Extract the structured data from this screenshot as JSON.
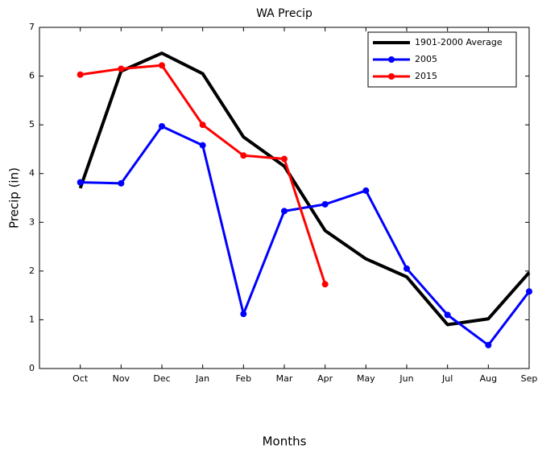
{
  "chart_data": {
    "type": "line",
    "title": "WA Precip",
    "x_label": "Months",
    "y_label": "Precip (in)",
    "categories": [
      null,
      "Oct",
      "Nov",
      "Dec",
      "Jan",
      "Feb",
      "Mar",
      "Apr",
      "May",
      "Jun",
      "Jul",
      "Aug",
      "Sep"
    ],
    "series": [
      {
        "name": "1901-2000 Average",
        "color": "#000000",
        "markers": false,
        "values": [
          null,
          3.7,
          6.1,
          6.47,
          6.05,
          4.75,
          4.15,
          2.83,
          2.25,
          1.88,
          0.9,
          1.02,
          1.97
        ]
      },
      {
        "name": "2005",
        "color": "#0000ff",
        "markers": true,
        "values": [
          null,
          3.82,
          3.8,
          4.97,
          4.58,
          1.12,
          3.23,
          3.37,
          3.65,
          2.05,
          1.1,
          0.48,
          1.58
        ]
      },
      {
        "name": "2015",
        "color": "#ff0000",
        "markers": true,
        "values": [
          null,
          6.03,
          6.15,
          6.22,
          5.0,
          4.37,
          4.3,
          1.73,
          null,
          null,
          null,
          null,
          null
        ]
      }
    ],
    "ylim": [
      0,
      7
    ],
    "yticks": [
      0,
      1,
      2,
      3,
      4,
      5,
      6,
      7
    ],
    "grid": false,
    "legend": "upper right"
  }
}
